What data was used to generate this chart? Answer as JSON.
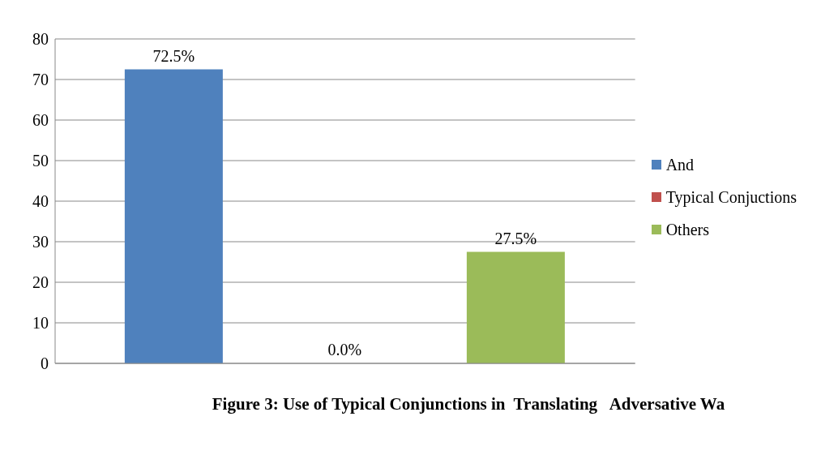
{
  "chart_data": {
    "type": "bar",
    "title": "Figure 3: Use of Typical Conjunctions in  Translating   Adversative Wa",
    "categories": [
      null
    ],
    "series": [
      {
        "name": "And",
        "color": "#4f81bd",
        "values": [
          72.5
        ],
        "value_labels": [
          "72.5%"
        ]
      },
      {
        "name": "Typical Conjuctions",
        "color": "#c0504d",
        "values": [
          0
        ],
        "value_labels": [
          "0.0%"
        ]
      },
      {
        "name": "Others",
        "color": "#9bbb59",
        "values": [
          27.5
        ],
        "value_labels": [
          "27.5%"
        ]
      }
    ],
    "ylim": [
      0,
      80
    ],
    "yticks": [
      0,
      10,
      20,
      30,
      40,
      50,
      60,
      70,
      80
    ],
    "grid": "y",
    "legend": "right",
    "tick_labels": "y"
  }
}
